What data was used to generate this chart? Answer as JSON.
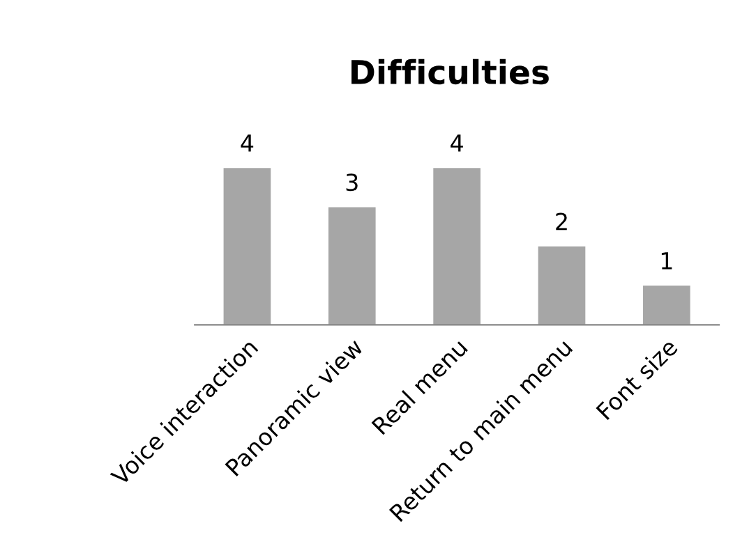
{
  "chart_data": {
    "type": "bar",
    "title": "Difficulties",
    "categories": [
      "Voice interaction",
      "Panoramic view",
      "Real menu",
      "Return to main menu",
      "Font size"
    ],
    "values": [
      4,
      3,
      4,
      2,
      1
    ],
    "color": "#a6a6a6",
    "data_labels": true,
    "tick_labels": "x",
    "grid": false,
    "legend": false
  }
}
